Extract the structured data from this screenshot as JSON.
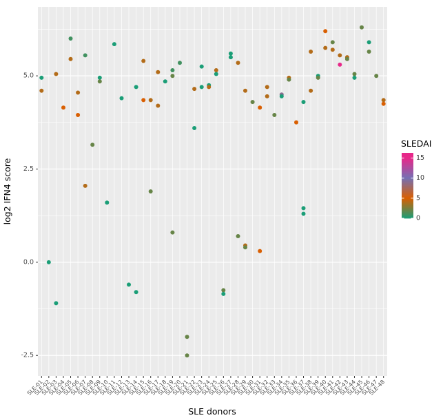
{
  "colors": {
    "panel_bg": "#EBEBEB",
    "grid": "#FFFFFF",
    "tick_mark": "#333333",
    "tick_text": "#4D4D4D",
    "title_text": "#000000"
  },
  "axes": {
    "x": {
      "label": "SLE donors"
    },
    "y": {
      "label": "log2 IFN4 score",
      "tick_labels": [
        "-2.5",
        "0.0",
        "2.5",
        "5.0"
      ],
      "tick_values": [
        -2.5,
        0.0,
        2.5,
        5.0
      ],
      "minor_tick_values": [
        -1.25,
        1.25,
        3.75,
        6.25
      ]
    }
  },
  "legend": {
    "title": "SLEDAI",
    "ticks": [
      15,
      10,
      5,
      0
    ],
    "range": [
      0,
      16.3
    ],
    "stops": [
      {
        "value": 0,
        "color": "#1B9E77"
      },
      {
        "value": 5,
        "color": "#D95F02"
      },
      {
        "value": 10,
        "color": "#7570B3"
      },
      {
        "value": 15,
        "color": "#E7298A"
      }
    ]
  },
  "chart_data": {
    "type": "scatter",
    "title": "",
    "xlabel": "SLE donors",
    "ylabel": "log2 IFN4 score",
    "ylim": [
      -3.05,
      6.85
    ],
    "color_variable": "SLEDAI",
    "legend_position": "right",
    "grid": true,
    "x_categories": [
      "SLE-01",
      "SLE-02",
      "SLE-03",
      "SLE-04",
      "SLE-05",
      "SLE-06",
      "SLE-07",
      "SLE-08",
      "SLE-09",
      "SLE-10",
      "SLE-11",
      "SLE-12",
      "SLE-13",
      "SLE-14",
      "SLE-15",
      "SLE-16",
      "SLE-17",
      "SLE-18",
      "SLE-19",
      "SLE-20",
      "SLE-21",
      "SLE-22",
      "SLE-23",
      "SLE-24",
      "SLE-25",
      "SLE-26",
      "SLE-27",
      "SLE-28",
      "SLE-29",
      "SLE-30",
      "SLE-31",
      "SLE-32",
      "SLE-33",
      "SLE-34",
      "SLE-35",
      "SLE-36",
      "SLE-37",
      "SLE-38",
      "SLE-39",
      "SLE-40",
      "SLE-41",
      "SLE-42",
      "SLE-43",
      "SLE-44",
      "SLE-45",
      "SLE-46",
      "SLE-47",
      "SLE-48"
    ],
    "points_format": [
      "donor_index",
      "log2_ifn4_score",
      "sledai"
    ],
    "points": [
      [
        1,
        4.6,
        4
      ],
      [
        1,
        4.95,
        0
      ],
      [
        2,
        0.0,
        0
      ],
      [
        3,
        5.05,
        4
      ],
      [
        3,
        -1.1,
        0
      ],
      [
        4,
        4.15,
        5
      ],
      [
        5,
        6.0,
        1
      ],
      [
        5,
        5.45,
        4
      ],
      [
        6,
        4.55,
        4
      ],
      [
        6,
        3.95,
        5
      ],
      [
        7,
        5.55,
        1
      ],
      [
        7,
        2.05,
        4
      ],
      [
        8,
        3.15,
        2
      ],
      [
        9,
        4.95,
        0
      ],
      [
        9,
        4.85,
        2
      ],
      [
        10,
        1.6,
        0
      ],
      [
        11,
        5.85,
        0
      ],
      [
        12,
        4.4,
        0
      ],
      [
        13,
        -0.6,
        0
      ],
      [
        14,
        4.7,
        0
      ],
      [
        14,
        -0.8,
        0
      ],
      [
        15,
        5.4,
        4
      ],
      [
        15,
        4.35,
        5
      ],
      [
        16,
        4.35,
        4
      ],
      [
        16,
        1.9,
        2
      ],
      [
        17,
        5.1,
        4
      ],
      [
        17,
        4.2,
        4
      ],
      [
        18,
        4.85,
        0
      ],
      [
        19,
        5.15,
        1
      ],
      [
        19,
        5.0,
        2
      ],
      [
        19,
        0.8,
        2
      ],
      [
        20,
        5.35,
        1
      ],
      [
        21,
        -2.0,
        2
      ],
      [
        21,
        -2.5,
        2
      ],
      [
        22,
        4.65,
        4
      ],
      [
        22,
        3.6,
        0
      ],
      [
        23,
        5.25,
        0
      ],
      [
        23,
        4.7,
        0
      ],
      [
        24,
        4.75,
        0
      ],
      [
        24,
        4.7,
        4
      ],
      [
        25,
        5.15,
        4
      ],
      [
        25,
        5.05,
        0
      ],
      [
        26,
        -0.75,
        2
      ],
      [
        26,
        -0.85,
        0
      ],
      [
        27,
        5.6,
        0
      ],
      [
        27,
        5.5,
        0
      ],
      [
        28,
        5.35,
        4
      ],
      [
        28,
        0.7,
        2
      ],
      [
        29,
        4.6,
        4
      ],
      [
        29,
        0.45,
        4
      ],
      [
        29,
        0.4,
        2
      ],
      [
        30,
        4.3,
        2
      ],
      [
        31,
        4.15,
        5
      ],
      [
        31,
        0.3,
        5
      ],
      [
        32,
        4.7,
        4
      ],
      [
        32,
        4.45,
        4
      ],
      [
        33,
        3.95,
        2
      ],
      [
        34,
        4.5,
        9
      ],
      [
        34,
        4.45,
        0
      ],
      [
        35,
        4.95,
        4
      ],
      [
        35,
        4.9,
        2
      ],
      [
        36,
        3.75,
        5
      ],
      [
        37,
        4.3,
        0
      ],
      [
        37,
        1.45,
        0
      ],
      [
        37,
        1.3,
        0
      ],
      [
        38,
        5.65,
        4
      ],
      [
        38,
        4.6,
        4
      ],
      [
        39,
        5.0,
        0
      ],
      [
        39,
        4.95,
        2
      ],
      [
        40,
        6.2,
        5
      ],
      [
        40,
        5.75,
        4
      ],
      [
        41,
        5.9,
        2
      ],
      [
        41,
        5.7,
        4
      ],
      [
        42,
        5.55,
        4
      ],
      [
        42,
        5.3,
        15
      ],
      [
        43,
        5.5,
        4
      ],
      [
        43,
        5.45,
        2
      ],
      [
        44,
        5.05,
        2
      ],
      [
        44,
        4.95,
        0
      ],
      [
        45,
        6.3,
        2
      ],
      [
        46,
        5.9,
        0
      ],
      [
        46,
        5.65,
        2
      ],
      [
        47,
        5.0,
        2
      ],
      [
        48,
        4.35,
        4
      ],
      [
        48,
        4.25,
        5
      ]
    ]
  }
}
